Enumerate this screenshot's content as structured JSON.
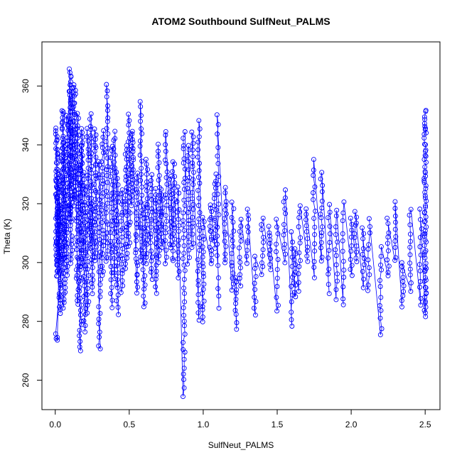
{
  "chart_data": {
    "type": "scatter",
    "title": "ATOM2 Southbound SulfNeut_PALMS",
    "xlabel": "SulfNeut_PALMS",
    "ylabel": "Theta (K)",
    "xlim": [
      -0.09,
      2.6
    ],
    "ylim": [
      250,
      375
    ],
    "x_ticks": [
      "0.0",
      "0.5",
      "1.0",
      "1.5",
      "2.0",
      "2.5"
    ],
    "x_tick_values": [
      0,
      0.5,
      1.0,
      1.5,
      2.0,
      2.5
    ],
    "y_ticks": [
      "260",
      "280",
      "300",
      "320",
      "340",
      "360"
    ],
    "y_tick_values": [
      260,
      280,
      300,
      320,
      340,
      360
    ],
    "grid": false,
    "marker": "open-circle",
    "connect_points": true,
    "color": "#0000ff",
    "series": [
      {
        "clusters": [
          [
            0.01,
            295,
            345,
            60
          ],
          [
            0.02,
            300,
            330,
            40
          ],
          [
            0.03,
            283,
            320,
            40
          ],
          [
            0.01,
            274,
            275,
            4
          ],
          [
            0.05,
            300,
            352,
            50
          ],
          [
            0.06,
            285,
            340,
            40
          ],
          [
            0.08,
            296,
            350,
            40
          ],
          [
            0.1,
            315,
            366,
            50
          ],
          [
            0.11,
            300,
            360,
            40
          ],
          [
            0.13,
            320,
            360,
            40
          ],
          [
            0.15,
            286,
            350,
            40
          ],
          [
            0.17,
            270,
            340,
            40
          ],
          [
            0.18,
            298,
            346,
            30
          ],
          [
            0.2,
            277,
            330,
            30
          ],
          [
            0.22,
            283,
            345,
            30
          ],
          [
            0.24,
            305,
            350,
            30
          ],
          [
            0.25,
            290,
            320,
            20
          ],
          [
            0.27,
            300,
            345,
            30
          ],
          [
            0.3,
            270,
            335,
            30
          ],
          [
            0.32,
            295,
            345,
            25
          ],
          [
            0.35,
            300,
            360,
            30
          ],
          [
            0.38,
            285,
            340,
            25
          ],
          [
            0.4,
            295,
            345,
            25
          ],
          [
            0.42,
            283,
            330,
            25
          ],
          [
            0.45,
            290,
            325,
            20
          ],
          [
            0.48,
            298,
            340,
            25
          ],
          [
            0.5,
            305,
            350,
            25
          ],
          [
            0.52,
            320,
            345,
            20
          ],
          [
            0.55,
            290,
            330,
            25
          ],
          [
            0.58,
            300,
            355,
            25
          ],
          [
            0.6,
            285,
            320,
            20
          ],
          [
            0.62,
            300,
            335,
            20
          ],
          [
            0.65,
            295,
            330,
            20
          ],
          [
            0.68,
            290,
            325,
            20
          ],
          [
            0.7,
            300,
            340,
            20
          ],
          [
            0.72,
            305,
            325,
            15
          ],
          [
            0.75,
            300,
            345,
            20
          ],
          [
            0.78,
            305,
            330,
            15
          ],
          [
            0.8,
            300,
            335,
            20
          ],
          [
            0.83,
            295,
            325,
            15
          ],
          [
            0.87,
            255,
            345,
            40
          ],
          [
            0.9,
            300,
            340,
            20
          ],
          [
            0.93,
            305,
            345,
            20
          ],
          [
            0.97,
            280,
            348,
            30
          ],
          [
            1.0,
            280,
            315,
            20
          ],
          [
            1.05,
            300,
            320,
            15
          ],
          [
            1.08,
            305,
            330,
            15
          ],
          [
            1.1,
            285,
            350,
            20
          ],
          [
            1.15,
            300,
            325,
            15
          ],
          [
            1.2,
            290,
            320,
            15
          ],
          [
            1.22,
            278,
            295,
            10
          ],
          [
            1.25,
            292,
            315,
            12
          ],
          [
            1.3,
            300,
            318,
            10
          ],
          [
            1.35,
            282,
            302,
            10
          ],
          [
            1.4,
            296,
            315,
            10
          ],
          [
            1.45,
            298,
            312,
            10
          ],
          [
            1.5,
            283,
            315,
            12
          ],
          [
            1.55,
            300,
            325,
            12
          ],
          [
            1.6,
            278,
            310,
            12
          ],
          [
            1.62,
            288,
            305,
            10
          ],
          [
            1.65,
            290,
            320,
            12
          ],
          [
            1.7,
            300,
            318,
            10
          ],
          [
            1.75,
            295,
            335,
            15
          ],
          [
            1.8,
            300,
            330,
            15
          ],
          [
            1.85,
            290,
            320,
            12
          ],
          [
            1.9,
            288,
            318,
            12
          ],
          [
            1.95,
            285,
            320,
            12
          ],
          [
            2.0,
            295,
            315,
            10
          ],
          [
            2.03,
            300,
            318,
            10
          ],
          [
            2.08,
            292,
            312,
            10
          ],
          [
            2.12,
            290,
            315,
            10
          ],
          [
            2.2,
            275,
            305,
            12
          ],
          [
            2.25,
            295,
            315,
            10
          ],
          [
            2.3,
            300,
            320,
            10
          ],
          [
            2.35,
            285,
            300,
            10
          ],
          [
            2.4,
            290,
            318,
            12
          ],
          [
            2.47,
            285,
            318,
            12
          ],
          [
            2.5,
            282,
            352,
            70
          ]
        ]
      }
    ]
  }
}
